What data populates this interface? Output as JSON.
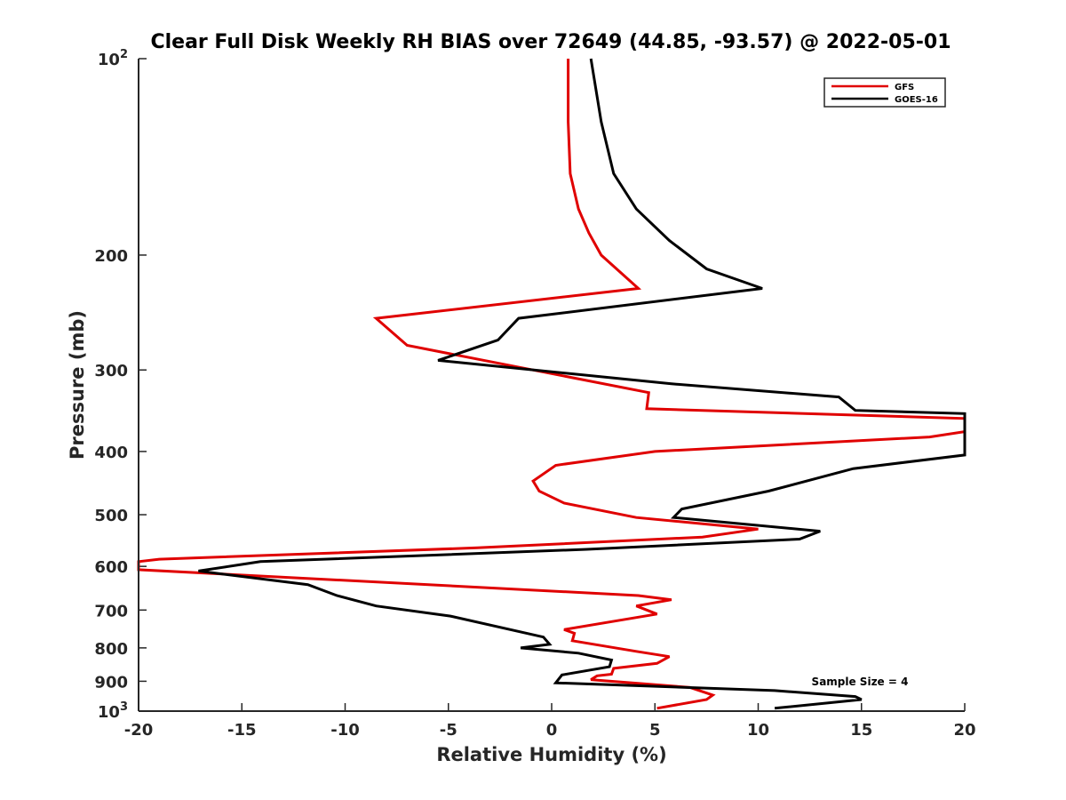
{
  "chart_data": {
    "type": "line",
    "title": "Clear Full Disk Weekly RH BIAS over 72649 (44.85, -93.57) @ 2022-05-01",
    "xlabel": "Relative Humidity (%)",
    "ylabel": "Pressure (mb)",
    "xlim": [
      -20,
      20
    ],
    "ylim": [
      100,
      1000
    ],
    "yscale": "log",
    "y_reversed": true,
    "grid": false,
    "legend_position": "top-right",
    "x_ticks": [
      "-20",
      "-15",
      "-10",
      "-5",
      "0",
      "5",
      "10",
      "15",
      "20"
    ],
    "y_ticks": [
      {
        "value": 100,
        "base": "10",
        "exp": "2"
      },
      {
        "value": 200,
        "label": "200"
      },
      {
        "value": 300,
        "label": "300"
      },
      {
        "value": 400,
        "label": "400"
      },
      {
        "value": 500,
        "label": "500"
      },
      {
        "value": 600,
        "label": "600"
      },
      {
        "value": 700,
        "label": "700"
      },
      {
        "value": 800,
        "label": "800"
      },
      {
        "value": 900,
        "label": "900"
      },
      {
        "value": 1000,
        "base": "10",
        "exp": "3"
      }
    ],
    "annotation": "Sample Size = 4",
    "series": [
      {
        "name": "GFS",
        "color": "#e00000",
        "points": [
          [
            0.8,
            100
          ],
          [
            0.8,
            125
          ],
          [
            0.9,
            150
          ],
          [
            1.3,
            170
          ],
          [
            1.8,
            185
          ],
          [
            2.4,
            200
          ],
          [
            4.2,
            225
          ],
          [
            -8.5,
            250
          ],
          [
            -7.0,
            275
          ],
          [
            4.7,
            325
          ],
          [
            4.6,
            344
          ],
          [
            20.0,
            356
          ],
          [
            20.0,
            373
          ],
          [
            18.3,
            380
          ],
          [
            5.0,
            400
          ],
          [
            0.2,
            420
          ],
          [
            -0.9,
            444
          ],
          [
            -0.6,
            460
          ],
          [
            0.6,
            480
          ],
          [
            4.1,
            505
          ],
          [
            10.0,
            526
          ],
          [
            7.3,
            541
          ],
          [
            -3.6,
            562
          ],
          [
            -19.0,
            585
          ],
          [
            -20.0,
            590
          ],
          [
            -20.0,
            607
          ],
          [
            4.2,
            665
          ],
          [
            5.8,
            675
          ],
          [
            4.1,
            690
          ],
          [
            5.1,
            710
          ],
          [
            0.6,
            750
          ],
          [
            1.1,
            760
          ],
          [
            1.0,
            780
          ],
          [
            4.1,
            810
          ],
          [
            5.7,
            825
          ],
          [
            5.1,
            845
          ],
          [
            3.0,
            860
          ],
          [
            2.9,
            878
          ],
          [
            2.2,
            883
          ],
          [
            1.9,
            895
          ],
          [
            6.7,
            920
          ],
          [
            7.8,
            945
          ],
          [
            7.5,
            960
          ],
          [
            5.1,
            990
          ]
        ]
      },
      {
        "name": "GOES-16",
        "color": "#000000",
        "points": [
          [
            1.9,
            100
          ],
          [
            2.4,
            125
          ],
          [
            3.0,
            150
          ],
          [
            4.1,
            170
          ],
          [
            5.7,
            190
          ],
          [
            7.5,
            210
          ],
          [
            10.2,
            225
          ],
          [
            -1.6,
            250
          ],
          [
            -2.6,
            270
          ],
          [
            -5.5,
            290
          ],
          [
            5.8,
            315
          ],
          [
            13.9,
            330
          ],
          [
            14.7,
            346
          ],
          [
            20.0,
            350
          ],
          [
            20.0,
            405
          ],
          [
            14.6,
            425
          ],
          [
            10.5,
            460
          ],
          [
            6.3,
            490
          ],
          [
            5.9,
            505
          ],
          [
            13.0,
            530
          ],
          [
            12.0,
            545
          ],
          [
            1.7,
            565
          ],
          [
            -14.1,
            590
          ],
          [
            -17.1,
            610
          ],
          [
            -11.8,
            640
          ],
          [
            -10.4,
            665
          ],
          [
            -8.5,
            690
          ],
          [
            -4.9,
            715
          ],
          [
            -0.4,
            770
          ],
          [
            -0.1,
            790
          ],
          [
            -1.5,
            800
          ],
          [
            1.3,
            815
          ],
          [
            2.9,
            835
          ],
          [
            2.8,
            855
          ],
          [
            0.5,
            880
          ],
          [
            0.2,
            905
          ],
          [
            10.8,
            930
          ],
          [
            14.7,
            950
          ],
          [
            15.0,
            960
          ],
          [
            10.8,
            990
          ]
        ]
      }
    ]
  }
}
